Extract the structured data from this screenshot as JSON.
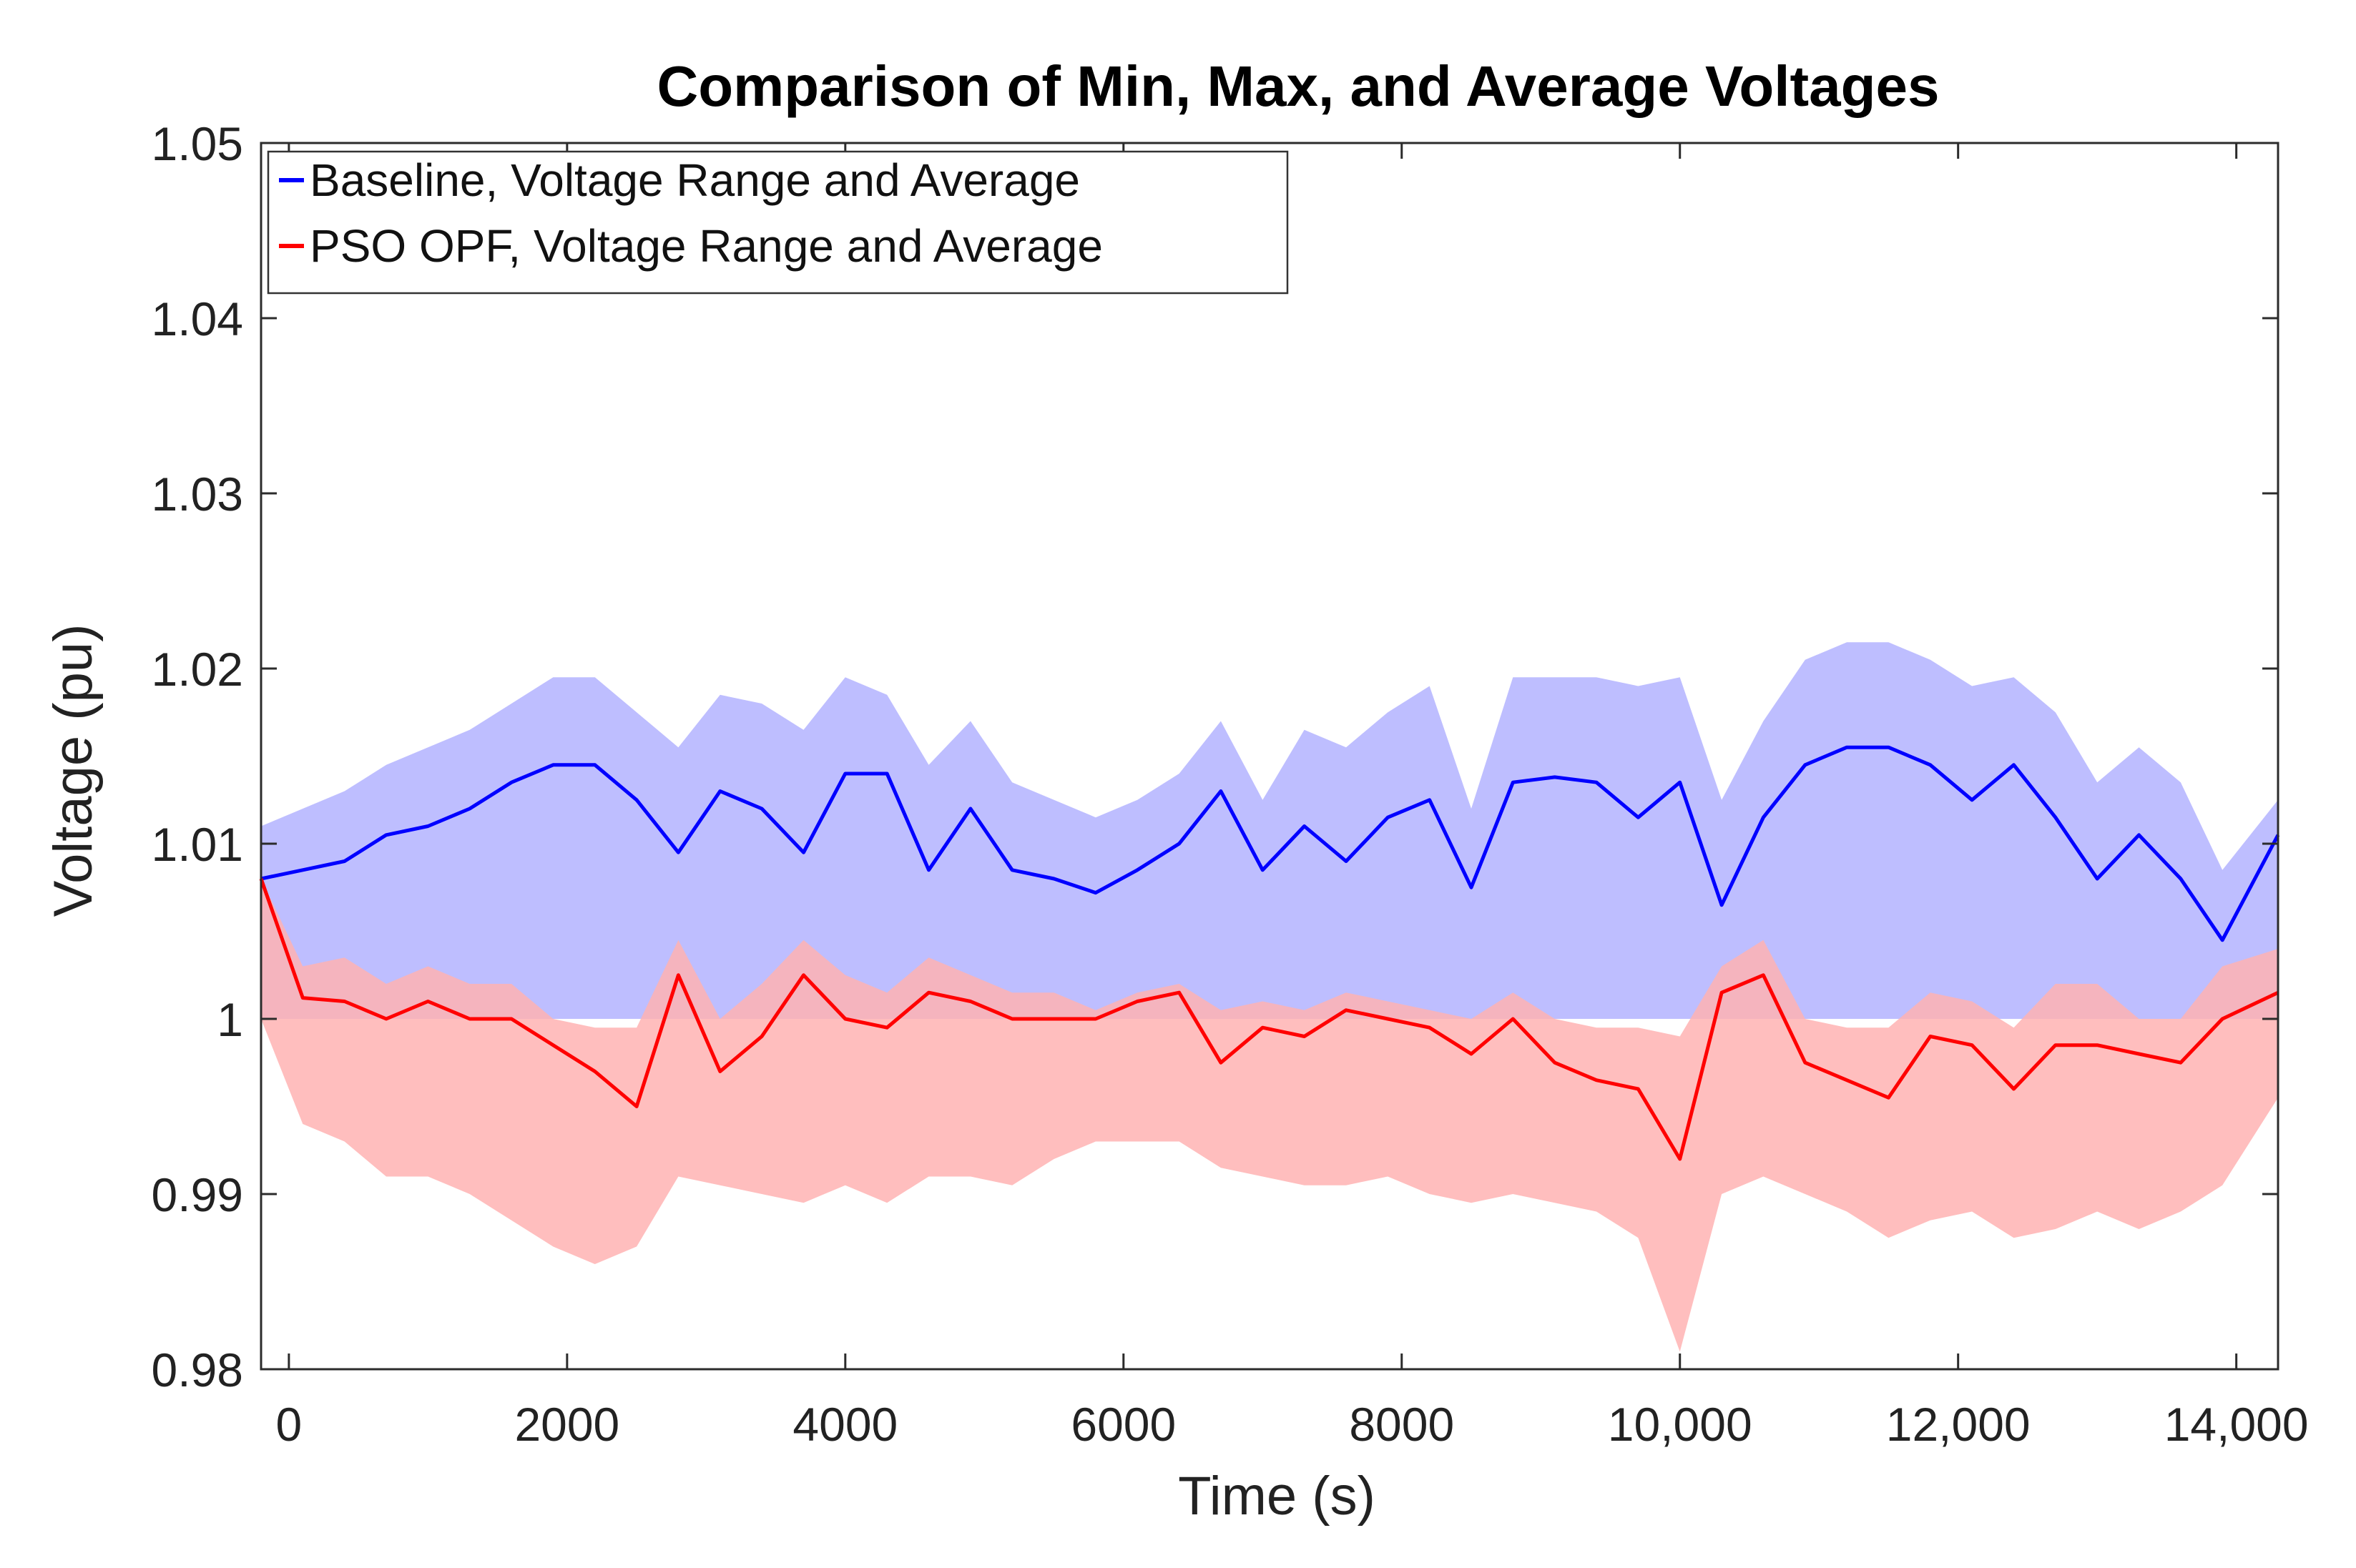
{
  "chart_data": {
    "type": "area",
    "title": "Comparison of Min, Max, and Average Voltages",
    "xlabel": "Time (s)",
    "ylabel": "Voltage (pu)",
    "xlim": [
      -200,
      14300
    ],
    "ylim": [
      0.98,
      1.05
    ],
    "xticks": [
      0,
      2000,
      4000,
      6000,
      8000,
      10000,
      12000,
      14000
    ],
    "xtick_labels": [
      "0",
      "2000",
      "4000",
      "6000",
      "8000",
      "10,000",
      "12,000",
      "14,000"
    ],
    "yticks": [
      0.98,
      0.99,
      1.0,
      1.01,
      1.02,
      1.03,
      1.04,
      1.05
    ],
    "ytick_labels": [
      "0.98",
      "0.99",
      "1",
      "1.01",
      "1.02",
      "1.03",
      "1.04",
      "1.05"
    ],
    "legend_position": "top-left",
    "grid": false,
    "x": [
      -200,
      100,
      400,
      700,
      1000,
      1300,
      1600,
      1900,
      2200,
      2500,
      2800,
      3100,
      3400,
      3700,
      4000,
      4300,
      4600,
      4900,
      5200,
      5500,
      5800,
      6100,
      6400,
      6700,
      7000,
      7300,
      7600,
      7900,
      8200,
      8500,
      8800,
      9100,
      9400,
      9700,
      10000,
      10300,
      10600,
      10900,
      11200,
      11500,
      11800,
      12100,
      12400,
      12700,
      13000,
      13300,
      13600,
      13900,
      14300
    ],
    "series": [
      {
        "name": "Baseline, Voltage Range and Average",
        "color": "#0000ff",
        "fill": "#b3b3ff",
        "avg": [
          1.008,
          1.0085,
          1.009,
          1.0105,
          1.011,
          1.012,
          1.0135,
          1.0145,
          1.0145,
          1.0125,
          1.0095,
          1.013,
          1.012,
          1.0095,
          1.014,
          1.014,
          1.0085,
          1.012,
          1.0085,
          1.008,
          1.0072,
          1.0085,
          1.01,
          1.013,
          1.0085,
          1.011,
          1.009,
          1.0115,
          1.0125,
          1.0075,
          1.0135,
          1.0138,
          1.0135,
          1.0115,
          1.0135,
          1.0065,
          1.0115,
          1.0145,
          1.0155,
          1.0155,
          1.0145,
          1.0125,
          1.0145,
          1.0115,
          1.008,
          1.0105,
          1.008,
          1.0045,
          1.0105
        ],
        "min": [
          1.0,
          1.0,
          1.0,
          1.0,
          1.0,
          1.0,
          1.0,
          1.0,
          1.0,
          1.0,
          1.0,
          1.0,
          1.0,
          1.0,
          1.0,
          1.0,
          1.0,
          1.0,
          1.0,
          1.0,
          1.0,
          1.0,
          1.0,
          1.0,
          1.0,
          1.0,
          1.0,
          1.0,
          1.0,
          1.0,
          1.0,
          1.0,
          1.0,
          1.0,
          1.0,
          1.0,
          1.0,
          1.0,
          1.0,
          1.0,
          1.0,
          1.0,
          1.0,
          1.0,
          1.0,
          1.0,
          1.0,
          1.0,
          1.0
        ],
        "max": [
          1.011,
          1.012,
          1.013,
          1.0145,
          1.0155,
          1.0165,
          1.018,
          1.0195,
          1.0195,
          1.0175,
          1.0155,
          1.0185,
          1.018,
          1.0165,
          1.0195,
          1.0185,
          1.0145,
          1.017,
          1.0135,
          1.0125,
          1.0115,
          1.0125,
          1.014,
          1.017,
          1.0125,
          1.0165,
          1.0155,
          1.0175,
          1.019,
          1.012,
          1.0195,
          1.0195,
          1.0195,
          1.019,
          1.0195,
          1.0125,
          1.017,
          1.0205,
          1.0215,
          1.0215,
          1.0205,
          1.019,
          1.0195,
          1.0175,
          1.0135,
          1.0155,
          1.0135,
          1.0085,
          1.0125
        ]
      },
      {
        "name": "PSO OPF, Voltage Range and Average",
        "color": "#ff0000",
        "fill": "#ffb3b3",
        "avg": [
          1.008,
          1.0012,
          1.001,
          1.0,
          1.001,
          1.0,
          1.0,
          0.9985,
          0.997,
          0.995,
          1.0025,
          0.997,
          0.999,
          1.0025,
          1.0,
          0.9995,
          1.0015,
          1.001,
          1.0,
          1.0,
          1.0,
          1.001,
          1.0015,
          0.9975,
          0.9995,
          0.999,
          1.0005,
          1.0,
          0.9995,
          0.998,
          1.0,
          0.9975,
          0.9965,
          0.996,
          0.992,
          1.0015,
          1.0025,
          0.9975,
          0.9965,
          0.9955,
          0.999,
          0.9985,
          0.996,
          0.9985,
          0.9985,
          0.998,
          0.9975,
          1.0,
          1.0015
        ],
        "min": [
          1.0,
          0.994,
          0.993,
          0.991,
          0.991,
          0.99,
          0.9885,
          0.987,
          0.986,
          0.987,
          0.991,
          0.9905,
          0.99,
          0.9895,
          0.9905,
          0.9895,
          0.991,
          0.991,
          0.9905,
          0.992,
          0.993,
          0.993,
          0.993,
          0.9915,
          0.991,
          0.9905,
          0.9905,
          0.991,
          0.99,
          0.9895,
          0.99,
          0.9895,
          0.989,
          0.9875,
          0.981,
          0.99,
          0.991,
          0.99,
          0.989,
          0.9875,
          0.9885,
          0.989,
          0.9875,
          0.988,
          0.989,
          0.988,
          0.989,
          0.9905,
          0.9955
        ],
        "max": [
          1.008,
          1.003,
          1.0035,
          1.002,
          1.003,
          1.002,
          1.002,
          1.0,
          0.9995,
          0.9995,
          1.0045,
          1.0,
          1.002,
          1.0045,
          1.0025,
          1.0015,
          1.0035,
          1.0025,
          1.0015,
          1.0015,
          1.0005,
          1.0015,
          1.002,
          1.0005,
          1.001,
          1.0005,
          1.0015,
          1.001,
          1.0005,
          1.0,
          1.0015,
          1.0,
          0.9995,
          0.9995,
          0.999,
          1.003,
          1.0045,
          1.0,
          0.9995,
          0.9995,
          1.0015,
          1.001,
          0.9995,
          1.002,
          1.002,
          1.0,
          1.0,
          1.003,
          1.004
        ]
      }
    ]
  }
}
